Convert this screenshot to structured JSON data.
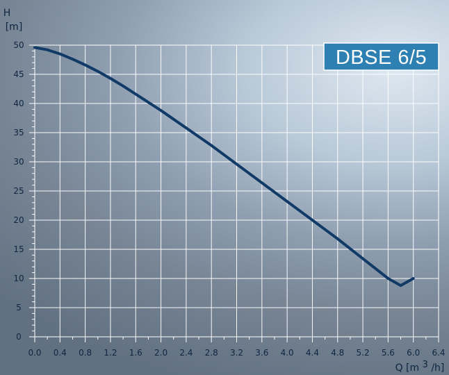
{
  "chart_data": {
    "type": "line",
    "title": "DBSE 6/5",
    "ylabel": {
      "name": "H",
      "unit": "[m]"
    },
    "xlabel": {
      "prefix": "Q [m",
      "superscript": "3",
      "suffix": "/h]"
    },
    "xlim": [
      0,
      6.4
    ],
    "ylim": [
      0,
      50
    ],
    "xticks": [
      "0.0",
      "0.4",
      "0.8",
      "1.2",
      "1.6",
      "2.0",
      "2.4",
      "2.8",
      "3.2",
      "3.6",
      "4.0",
      "4.4",
      "4.8",
      "5.2",
      "5.6",
      "6.0",
      "6.4"
    ],
    "yticks": [
      "0",
      "5",
      "10",
      "15",
      "20",
      "25",
      "30",
      "35",
      "40",
      "45",
      "50"
    ],
    "grid": true,
    "series": [
      {
        "x": [
          0.0,
          0.2,
          0.4,
          0.6,
          0.8,
          1.0,
          1.2,
          1.4,
          1.6,
          1.8,
          2.0,
          2.2,
          2.4,
          2.6,
          2.8,
          3.0,
          3.2,
          3.4,
          3.6,
          3.8,
          4.0,
          4.2,
          4.4,
          4.6,
          4.8,
          5.0,
          5.2,
          5.4,
          5.6,
          5.8,
          6.0
        ],
        "y": [
          49.6,
          49.2,
          48.5,
          47.6,
          46.6,
          45.5,
          44.3,
          43.0,
          41.6,
          40.2,
          38.8,
          37.3,
          35.8,
          34.3,
          32.8,
          31.2,
          29.6,
          28.0,
          26.4,
          24.8,
          23.2,
          21.6,
          20.0,
          18.4,
          16.8,
          15.1,
          13.4,
          11.7,
          10.0,
          8.8,
          10.0
        ]
      }
    ],
    "colors": {
      "curve": "#123a67",
      "grid": "#ffffff",
      "title_bg": "#2e7fb2",
      "title_text": "#ffffff",
      "axis_text": "#0f2540"
    }
  }
}
